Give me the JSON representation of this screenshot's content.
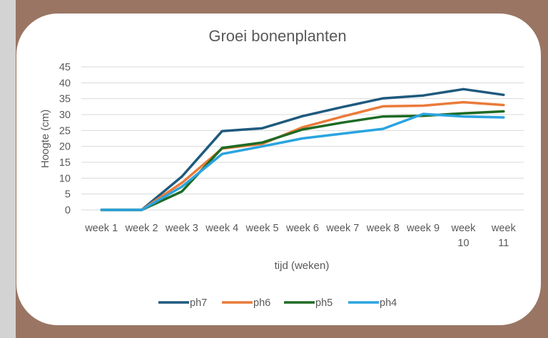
{
  "chart_data": {
    "type": "line",
    "title": "Groei bonenplanten",
    "xlabel": "tijd (weken)",
    "ylabel": "Hoogte (cm)",
    "categories": [
      "week 1",
      "week 2",
      "week 3",
      "week 4",
      "week 5",
      "week 6",
      "week 7",
      "week 8",
      "week 9",
      "week 10",
      "week 11"
    ],
    "category_lines": [
      [
        "week 1"
      ],
      [
        "week 2"
      ],
      [
        "week 3"
      ],
      [
        "week 4"
      ],
      [
        "week 5"
      ],
      [
        "week 6"
      ],
      [
        "week 7"
      ],
      [
        "week 8"
      ],
      [
        "week 9"
      ],
      [
        "week",
        "10"
      ],
      [
        "week",
        "11"
      ]
    ],
    "yticks": [
      0,
      5,
      10,
      15,
      20,
      25,
      30,
      35,
      40,
      45
    ],
    "ylim": [
      0,
      45
    ],
    "grid": true,
    "legend_position": "bottom",
    "series": [
      {
        "name": "ph7",
        "color": "#1f5a7e",
        "values": [
          0,
          0,
          10.5,
          24.8,
          25.7,
          29.5,
          32.4,
          35.1,
          36.0,
          38.0,
          36.2
        ]
      },
      {
        "name": "ph6",
        "color": "#ea7b3a",
        "values": [
          0,
          0,
          8.5,
          19.3,
          20.8,
          26.0,
          29.4,
          32.6,
          32.8,
          33.9,
          33.0
        ]
      },
      {
        "name": "ph5",
        "color": "#1e6b24",
        "values": [
          0,
          0,
          5.8,
          19.5,
          21.2,
          25.3,
          27.5,
          29.4,
          29.6,
          30.4,
          31.0
        ]
      },
      {
        "name": "ph4",
        "color": "#2aa4e0",
        "values": [
          0,
          0,
          7.3,
          17.6,
          20.0,
          22.5,
          24.0,
          25.5,
          30.2,
          29.4,
          29.1
        ]
      }
    ]
  }
}
